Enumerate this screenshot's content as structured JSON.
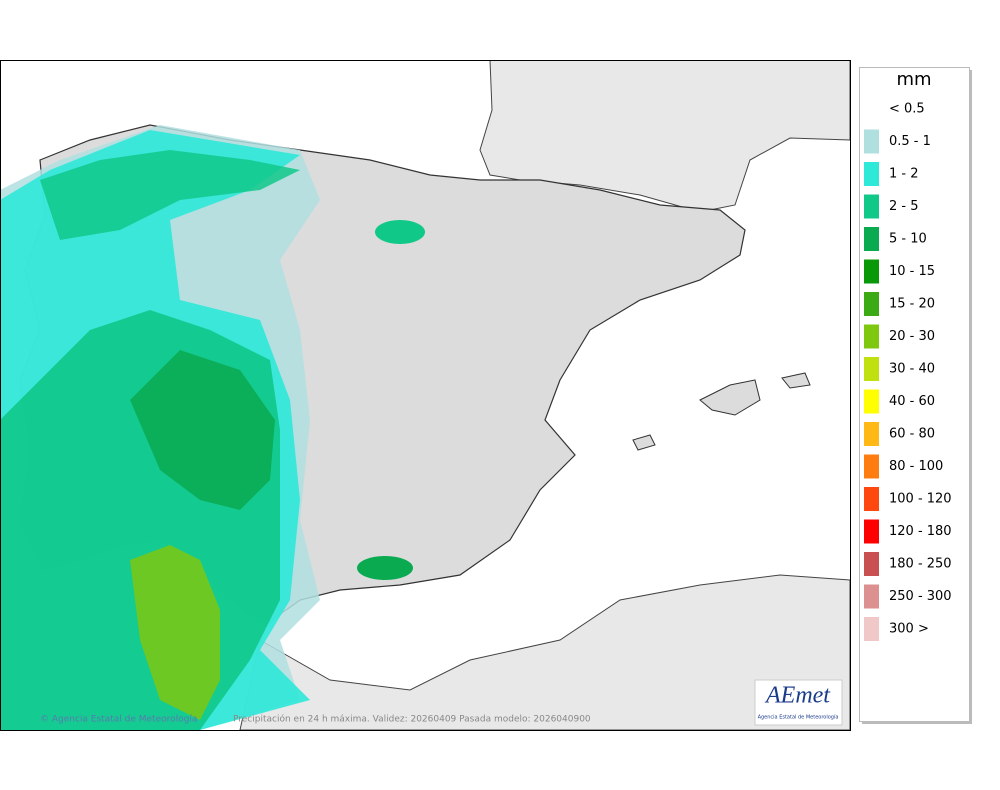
{
  "legend": {
    "title": "mm",
    "items": [
      {
        "label": "< 0.5",
        "color": "#ffffff"
      },
      {
        "label": "0.5 - 1",
        "color": "#b0dfe0"
      },
      {
        "label": "1 - 2",
        "color": "#2ee8d8"
      },
      {
        "label": "2 - 5",
        "color": "#10c888"
      },
      {
        "label": "5 - 10",
        "color": "#0aaa50"
      },
      {
        "label": "10 - 15",
        "color": "#089808"
      },
      {
        "label": "15 - 20",
        "color": "#3caa14"
      },
      {
        "label": "20 - 30",
        "color": "#7ec810"
      },
      {
        "label": "30 - 40",
        "color": "#c0e010"
      },
      {
        "label": "40 - 60",
        "color": "#ffff00"
      },
      {
        "label": "60 - 80",
        "color": "#ffb814"
      },
      {
        "label": "80 - 100",
        "color": "#ff7c10"
      },
      {
        "label": "100 - 120",
        "color": "#ff4810"
      },
      {
        "label": "120 - 180",
        "color": "#ff0000"
      },
      {
        "label": "180 - 250",
        "color": "#c85050"
      },
      {
        "label": "250 - 300",
        "color": "#dc9090"
      },
      {
        "label": "300 >",
        "color": "#f0c8c8"
      }
    ]
  },
  "footer": {
    "copyright": "© Agencia Estatal de Meteorología",
    "caption": "Precipitación en 24 h máxima. Validez: 20260409 Pasada modelo: 2026040900"
  },
  "logo": {
    "text": "AEmet",
    "subtitle": "Agencia Estatal de Meteorología"
  }
}
